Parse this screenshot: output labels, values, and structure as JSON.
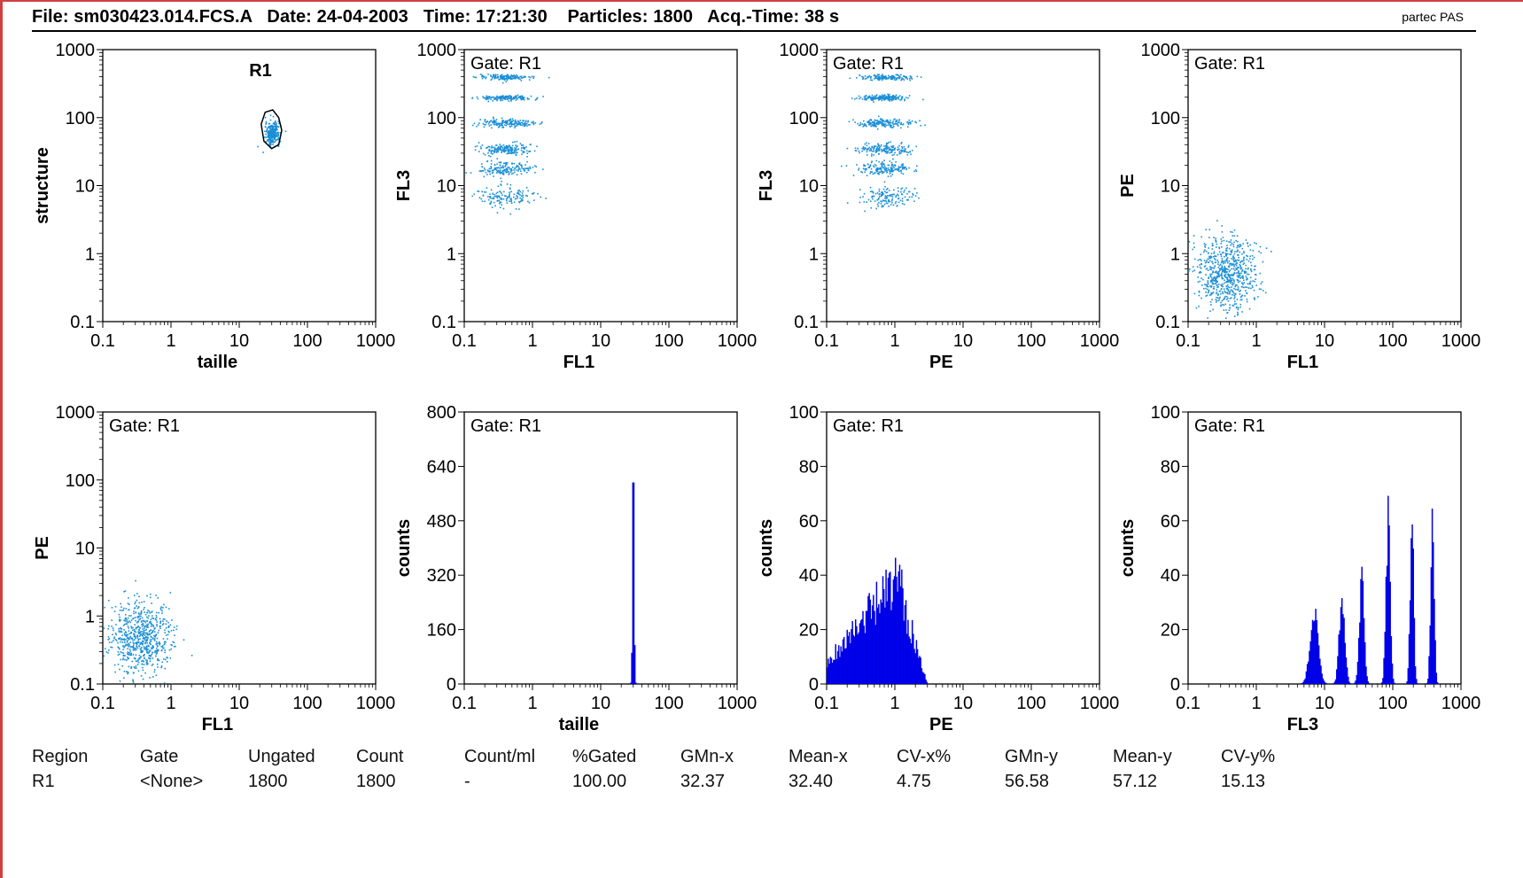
{
  "header": {
    "text": "File: sm030423.014.FCS.A   Date: 24-04-2003   Time: 17:21:30    Particles: 1800   Acq.-Time: 38 s",
    "brand": "partec PAS"
  },
  "colors": {
    "scatter": "#1a8fd6",
    "histogram": "#0000e8",
    "frame": "#d04040",
    "gate": "#000000"
  },
  "chart_data": [
    {
      "type": "scatter",
      "id": "p1",
      "xlabel": "taille",
      "ylabel": "structure",
      "x_scale": "log",
      "y_scale": "log",
      "xlim": [
        0.1,
        1000
      ],
      "ylim": [
        0.1,
        1000
      ],
      "x_ticks": [
        "0.1",
        "1",
        "10",
        "100",
        "1000"
      ],
      "y_ticks": [
        "0.1",
        "1",
        "10",
        "100",
        "1000"
      ],
      "region": "R1",
      "gate_polygon": [
        [
          24,
          120
        ],
        [
          21,
          80
        ],
        [
          23,
          45
        ],
        [
          30,
          35
        ],
        [
          38,
          40
        ],
        [
          42,
          65
        ],
        [
          38,
          100
        ],
        [
          31,
          130
        ]
      ],
      "clusters": [
        {
          "cx": 30,
          "cy": 60,
          "sx": 0.05,
          "sy": 0.08,
          "n": 300
        }
      ]
    },
    {
      "type": "scatter",
      "id": "p2",
      "gate_label": "Gate: R1",
      "xlabel": "FL1",
      "ylabel": "FL3",
      "x_scale": "log",
      "y_scale": "log",
      "xlim": [
        0.1,
        1000
      ],
      "ylim": [
        0.1,
        1000
      ],
      "x_ticks": [
        "0.1",
        "1",
        "10",
        "100",
        "1000"
      ],
      "y_ticks": [
        "0.1",
        "1",
        "10",
        "100",
        "1000"
      ],
      "clusters": [
        {
          "cx": 0.4,
          "cy": 400,
          "sx": 0.2,
          "sy": 0.02,
          "n": 150
        },
        {
          "cx": 0.4,
          "cy": 200,
          "sx": 0.2,
          "sy": 0.02,
          "n": 160
        },
        {
          "cx": 0.4,
          "cy": 85,
          "sx": 0.2,
          "sy": 0.03,
          "n": 170
        },
        {
          "cx": 0.4,
          "cy": 35,
          "sx": 0.2,
          "sy": 0.04,
          "n": 170
        },
        {
          "cx": 0.4,
          "cy": 18,
          "sx": 0.2,
          "sy": 0.05,
          "n": 170
        },
        {
          "cx": 0.4,
          "cy": 7,
          "sx": 0.2,
          "sy": 0.08,
          "n": 140
        }
      ]
    },
    {
      "type": "scatter",
      "id": "p3",
      "gate_label": "Gate: R1",
      "xlabel": "PE",
      "ylabel": "FL3",
      "x_scale": "log",
      "y_scale": "log",
      "xlim": [
        0.1,
        1000
      ],
      "ylim": [
        0.1,
        1000
      ],
      "x_ticks": [
        "0.1",
        "1",
        "10",
        "100",
        "1000"
      ],
      "y_ticks": [
        "0.1",
        "1",
        "10",
        "100",
        "1000"
      ],
      "clusters": [
        {
          "cx": 0.7,
          "cy": 400,
          "sx": 0.2,
          "sy": 0.02,
          "n": 150
        },
        {
          "cx": 0.7,
          "cy": 200,
          "sx": 0.2,
          "sy": 0.02,
          "n": 160
        },
        {
          "cx": 0.7,
          "cy": 85,
          "sx": 0.2,
          "sy": 0.03,
          "n": 170
        },
        {
          "cx": 0.7,
          "cy": 35,
          "sx": 0.2,
          "sy": 0.04,
          "n": 170
        },
        {
          "cx": 0.7,
          "cy": 18,
          "sx": 0.2,
          "sy": 0.05,
          "n": 170
        },
        {
          "cx": 0.7,
          "cy": 7,
          "sx": 0.2,
          "sy": 0.08,
          "n": 140
        }
      ]
    },
    {
      "type": "scatter",
      "id": "p4",
      "gate_label": "Gate: R1",
      "xlabel": "FL1",
      "ylabel": "PE",
      "x_scale": "log",
      "y_scale": "log",
      "xlim": [
        0.1,
        1000
      ],
      "ylim": [
        0.1,
        1000
      ],
      "x_ticks": [
        "0.1",
        "1",
        "10",
        "100",
        "1000"
      ],
      "y_ticks": [
        "0.1",
        "1",
        "10",
        "100",
        "1000"
      ],
      "clusters": [
        {
          "cx": 0.35,
          "cy": 0.5,
          "sx": 0.22,
          "sy": 0.28,
          "n": 700
        }
      ]
    },
    {
      "type": "scatter",
      "id": "p5",
      "gate_label": "Gate: R1",
      "xlabel": "FL1",
      "ylabel": "PE",
      "x_scale": "log",
      "y_scale": "log",
      "xlim": [
        0.1,
        1000
      ],
      "ylim": [
        0.1,
        1000
      ],
      "x_ticks": [
        "0.1",
        "1",
        "10",
        "100",
        "1000"
      ],
      "y_ticks": [
        "0.1",
        "1",
        "10",
        "100",
        "1000"
      ],
      "clusters": [
        {
          "cx": 0.35,
          "cy": 0.5,
          "sx": 0.22,
          "sy": 0.28,
          "n": 700
        }
      ]
    },
    {
      "type": "bar",
      "id": "p6",
      "gate_label": "Gate: R1",
      "xlabel": "taille",
      "ylabel": "counts",
      "x_scale": "log",
      "xlim": [
        0.1,
        1000
      ],
      "ylim": [
        0,
        800
      ],
      "x_ticks": [
        "0.1",
        "1",
        "10",
        "100",
        "1000"
      ],
      "y_ticks": [
        "0",
        "160",
        "320",
        "480",
        "640",
        "800"
      ],
      "peaks": [
        {
          "center": 30,
          "height": 630,
          "width": 0.012
        }
      ],
      "baseline": 0
    },
    {
      "type": "bar",
      "id": "p7",
      "gate_label": "Gate: R1",
      "xlabel": "PE",
      "ylabel": "counts",
      "x_scale": "log",
      "xlim": [
        0.1,
        1000
      ],
      "ylim": [
        0,
        100
      ],
      "x_ticks": [
        "0.1",
        "1",
        "10",
        "100",
        "1000"
      ],
      "y_ticks": [
        "0",
        "20",
        "40",
        "60",
        "80",
        "100"
      ],
      "shape": "ramp",
      "ramp": {
        "start": 0.1,
        "peak": 1.1,
        "end": 3,
        "start_h": 8,
        "peak_h": 38
      }
    },
    {
      "type": "bar",
      "id": "p8",
      "gate_label": "Gate: R1",
      "xlabel": "FL3",
      "ylabel": "counts",
      "x_scale": "log",
      "xlim": [
        0.1,
        1000
      ],
      "ylim": [
        0,
        100
      ],
      "x_ticks": [
        "0.1",
        "1",
        "10",
        "100",
        "1000"
      ],
      "y_ticks": [
        "0",
        "20",
        "40",
        "60",
        "80",
        "100"
      ],
      "peaks": [
        {
          "center": 7,
          "height": 25,
          "width": 0.06
        },
        {
          "center": 18,
          "height": 32,
          "width": 0.04
        },
        {
          "center": 35,
          "height": 37,
          "width": 0.035
        },
        {
          "center": 85,
          "height": 60,
          "width": 0.03
        },
        {
          "center": 190,
          "height": 62,
          "width": 0.025
        },
        {
          "center": 380,
          "height": 63,
          "width": 0.025
        }
      ]
    }
  ],
  "stats": {
    "headers": [
      "Region",
      "Gate",
      "Ungated",
      "Count",
      "Count/ml",
      "%Gated",
      "GMn-x",
      "Mean-x",
      "CV-x%",
      "GMn-y",
      "Mean-y",
      "CV-y%"
    ],
    "row": [
      "R1",
      "<None>",
      "1800",
      "1800",
      "-",
      "100.00",
      "32.37",
      "32.40",
      "4.75",
      "56.58",
      "57.12",
      "15.13"
    ]
  }
}
